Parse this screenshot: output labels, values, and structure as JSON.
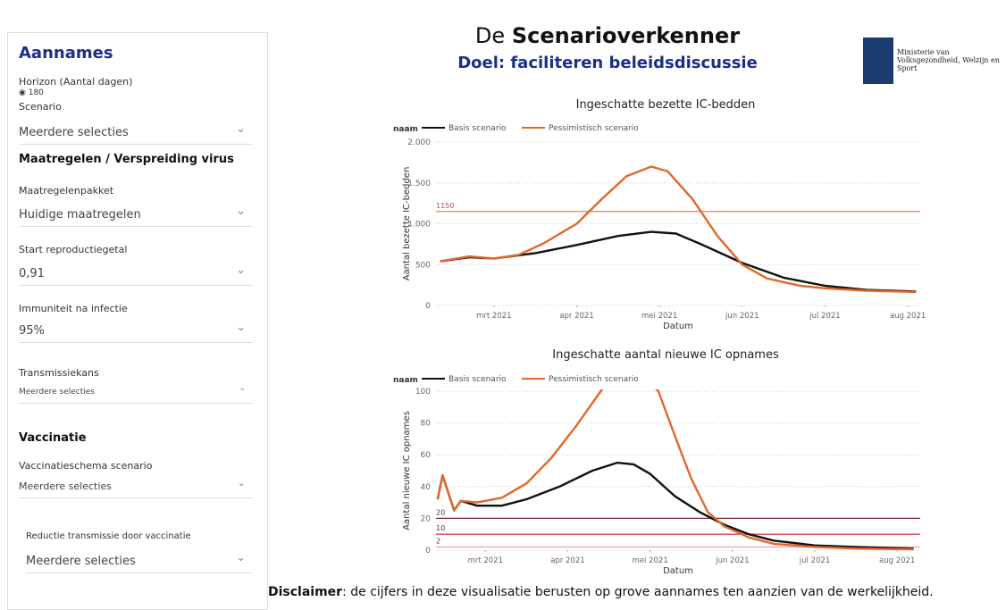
{
  "sidebar": {
    "title": "Aannames",
    "horizon": {
      "label": "Horizon (Aantal dagen)",
      "option": "180"
    },
    "scenario": {
      "label": "Scenario",
      "value": "Meerdere selecties"
    },
    "section1": "Maatregelen / Verspreiding virus",
    "maatregelen": {
      "label": "Maatregelenpakket",
      "value": "Huidige maatregelen"
    },
    "reproductie": {
      "label": "Start reproductiegetal",
      "value": "0,91"
    },
    "immuniteit": {
      "label": "Immuniteit na infectie",
      "value": "95%"
    },
    "transmissie": {
      "label": "Transmissiekans",
      "value": "Meerdere selecties"
    },
    "section2": "Vaccinatie",
    "vaccinatie": {
      "label": "Vaccinatieschema scenario",
      "value": "Meerdere selecties"
    },
    "reductie": {
      "label": "Reductie transmissie door vaccinatie",
      "value": "Meerdere selecties"
    }
  },
  "header": {
    "title_plain": "De",
    "title_bold": "Scenarioverkenner",
    "subtitle": "Doel: faciliteren beleidsdiscussie",
    "logo_text": "Ministerie van Volksgezondheid, Welzijn en Sport"
  },
  "chart_data": [
    {
      "type": "line",
      "title": "Ingeschatte bezette IC-bedden",
      "legend_title": "naam",
      "x_label": "Datum",
      "y_label": "Aantal bezette IC-bedden",
      "xlim": [
        2.3,
        8.15
      ],
      "xticks": [
        {
          "value": 3,
          "label": "mrt 2021"
        },
        {
          "value": 4,
          "label": "apr 2021"
        },
        {
          "value": 5,
          "label": "mei 2021"
        },
        {
          "value": 6,
          "label": "jun 2021"
        },
        {
          "value": 7,
          "label": "jul 2021"
        },
        {
          "value": 8,
          "label": "aug 2021"
        }
      ],
      "ylim": [
        0,
        2000
      ],
      "yticks": [
        0,
        500,
        {
          "value": 1000,
          "label": "1.000"
        },
        {
          "value": 1500,
          "label": "1.500"
        },
        {
          "value": 2000,
          "label": "2.000"
        }
      ],
      "reference_lines": [
        {
          "value": 1150,
          "label": "1150",
          "color": "#e8805a"
        }
      ],
      "series": [
        {
          "name": "Basis scenario",
          "color": "#111111",
          "x": [
            2.35,
            2.7,
            3.0,
            3.5,
            4.0,
            4.5,
            4.9,
            5.2,
            5.5,
            6.0,
            6.5,
            7.0,
            7.5,
            8.1
          ],
          "values": [
            540,
            590,
            575,
            640,
            740,
            850,
            900,
            880,
            750,
            520,
            340,
            240,
            190,
            170
          ]
        },
        {
          "name": "Pessimistisch scenario",
          "color": "#e0692a",
          "x": [
            2.35,
            2.7,
            3.0,
            3.3,
            3.6,
            4.0,
            4.3,
            4.6,
            4.9,
            5.1,
            5.4,
            5.7,
            6.0,
            6.3,
            6.7,
            7.0,
            7.5,
            8.1
          ],
          "values": [
            540,
            600,
            575,
            620,
            760,
            1000,
            1300,
            1580,
            1700,
            1640,
            1300,
            850,
            500,
            330,
            240,
            210,
            180,
            165
          ]
        }
      ]
    },
    {
      "type": "line",
      "title": "Ingeschatte aantal nieuwe IC opnames",
      "legend_title": "naam",
      "x_label": "Datum",
      "y_label": "Aantal nieuwe IC opnames",
      "xlim": [
        2.4,
        8.28
      ],
      "xticks": [
        {
          "value": 3,
          "label": "mrt 2021"
        },
        {
          "value": 4,
          "label": "apr 2021"
        },
        {
          "value": 5,
          "label": "mei 2021"
        },
        {
          "value": 6,
          "label": "jun 2021"
        },
        {
          "value": 7,
          "label": "jul 2021"
        },
        {
          "value": 8,
          "label": "aug 2021"
        }
      ],
      "ylim": [
        0,
        100
      ],
      "yticks": [
        0,
        20,
        40,
        60,
        80,
        100
      ],
      "reference_lines": [
        {
          "value": 20,
          "label": "20",
          "color": "#7a2a35"
        },
        {
          "value": 10,
          "label": "10",
          "color": "#d9425a"
        },
        {
          "value": 2,
          "label": "2",
          "color": "#f2a7b5"
        }
      ],
      "series": [
        {
          "name": "Basis scenario",
          "color": "#111111",
          "x": [
            2.42,
            2.48,
            2.55,
            2.62,
            2.7,
            2.9,
            3.2,
            3.5,
            3.9,
            4.3,
            4.6,
            4.8,
            5.0,
            5.3,
            5.6,
            5.9,
            6.2,
            6.5,
            7.0,
            7.5,
            8.2
          ],
          "values": [
            32,
            47,
            36,
            25,
            31,
            28,
            28,
            32,
            40,
            50,
            55,
            54,
            48,
            34,
            24,
            16,
            10,
            6,
            3,
            2,
            1
          ]
        },
        {
          "name": "Pessimistisch scenario",
          "color": "#e0692a",
          "x": [
            2.42,
            2.48,
            2.55,
            2.62,
            2.7,
            2.9,
            3.2,
            3.5,
            3.8,
            4.1,
            4.4,
            4.6,
            4.9,
            5.1,
            5.3,
            5.5,
            5.7,
            5.9,
            6.2,
            6.5,
            7.0,
            7.5,
            8.2
          ],
          "values": [
            32,
            47,
            36,
            25,
            31,
            30,
            33,
            42,
            58,
            78,
            100,
            112,
            110,
            100,
            72,
            45,
            24,
            15,
            8,
            4,
            2,
            1,
            0.5
          ]
        }
      ]
    }
  ],
  "footer": {
    "bold": "Disclaimer",
    "text": ": de cijfers in deze visualisatie berusten op grove aannames ten aanzien van de werkelijkheid."
  }
}
